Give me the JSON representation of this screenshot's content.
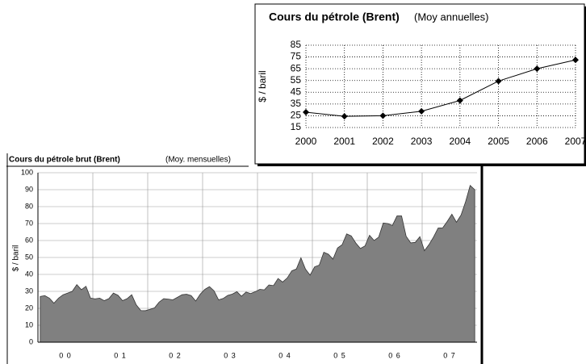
{
  "chart_data": [
    {
      "type": "line",
      "title": "Cours du pétrole (Brent)",
      "subtitle": "(Moy annuelles)",
      "ylabel": "$ / baril",
      "categories": [
        "2000",
        "2001",
        "2002",
        "2003",
        "2004",
        "2005",
        "2006",
        "2007"
      ],
      "values": [
        28,
        24.5,
        25,
        28.8,
        38,
        54.5,
        65,
        72.5
      ],
      "color": "#000000",
      "ylim": [
        15,
        85
      ],
      "yticks": [
        15,
        25,
        35,
        45,
        55,
        65,
        75,
        85
      ],
      "grid": true
    },
    {
      "type": "area",
      "title": "Cours du pétrole brut (Brent)",
      "subtitle": "(Moy. mensuelles)",
      "ylabel": "$ / baril",
      "categories": [
        "0 0",
        null,
        null,
        null,
        null,
        null,
        null,
        null,
        null,
        null,
        null,
        null,
        "0 1",
        null,
        null,
        null,
        null,
        null,
        null,
        null,
        null,
        null,
        null,
        null,
        "0 2",
        null,
        null,
        null,
        null,
        null,
        null,
        null,
        null,
        null,
        null,
        null,
        "0 3",
        null,
        null,
        null,
        null,
        null,
        null,
        null,
        null,
        null,
        null,
        null,
        "0 4",
        null,
        null,
        null,
        null,
        null,
        null,
        null,
        null,
        null,
        null,
        null,
        "0 5",
        null,
        null,
        null,
        null,
        null,
        null,
        null,
        null,
        null,
        null,
        null,
        "0 6",
        null,
        null,
        null,
        null,
        null,
        null,
        null,
        null,
        null,
        null,
        null,
        "0 7",
        null,
        null,
        null,
        null,
        null,
        null,
        null,
        null,
        null,
        null,
        null
      ],
      "values": [
        27,
        27.5,
        26,
        23,
        26,
        28,
        29,
        30,
        34,
        31,
        33,
        26,
        25.6,
        26,
        24.5,
        25.7,
        29,
        27.7,
        24.5,
        25.7,
        28,
        22,
        18.7,
        18.6,
        19.4,
        20.3,
        23.7,
        25.7,
        25.4,
        25,
        26.5,
        28,
        28.3,
        27.5,
        24.3,
        28.4,
        31.2,
        32.8,
        30.3,
        25,
        25.8,
        27.6,
        28.4,
        29.8,
        27.1,
        29.6,
        28.7,
        29.8,
        31.2,
        30.9,
        33.8,
        33.4,
        37.6,
        35.5,
        37.9,
        42.1,
        43.2,
        49.8,
        43.1,
        39.6,
        44.5,
        45.5,
        53.1,
        51.9,
        49,
        55.6,
        57.5,
        63.9,
        62.7,
        58.5,
        55.3,
        56.8,
        63.1,
        60,
        62,
        70.3,
        70,
        68.9,
        74.5,
        74.5,
        62.5,
        58.6,
        58.9,
        62.3,
        54,
        57.6,
        62.1,
        67.4,
        67.5,
        71.3,
        75.5,
        70.8,
        75,
        82.9,
        92.5,
        90
      ],
      "color": "#808080",
      "ylim": [
        0,
        100
      ],
      "yticks": [
        0,
        10,
        20,
        30,
        40,
        50,
        60,
        70,
        80,
        90,
        100
      ],
      "grid": true
    }
  ]
}
